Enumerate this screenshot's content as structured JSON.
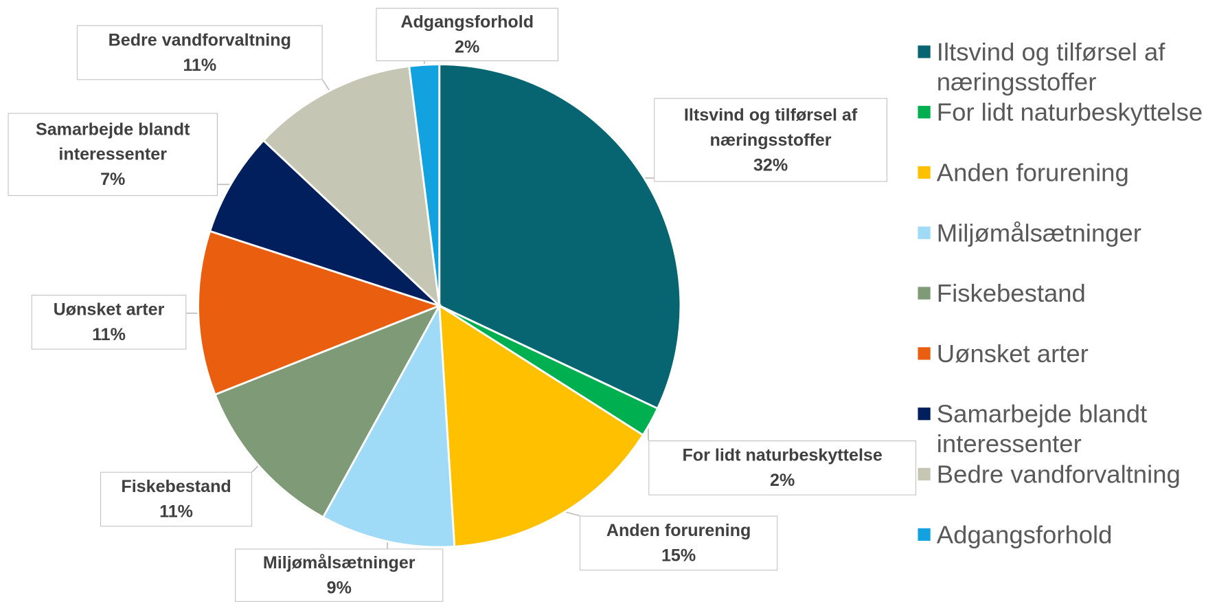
{
  "chart_data": {
    "type": "pie",
    "categories": [
      "Iltsvind og tilførsel af næringsstoffer",
      "For lidt naturbeskyttelse",
      "Anden forurening",
      "Miljømålsætninger",
      "Fiskebestand",
      "Uønsket arter",
      "Samarbejde blandt interessenter",
      "Bedre vandforvaltning",
      "Adgangsforhold"
    ],
    "values": [
      32,
      2,
      15,
      9,
      11,
      11,
      7,
      11,
      2
    ],
    "value_labels": [
      "32%",
      "2%",
      "15%",
      "9%",
      "11%",
      "11%",
      "7%",
      "11%",
      "2%"
    ],
    "colors": [
      "#066570",
      "#00b050",
      "#ffc000",
      "#9fdaf7",
      "#7f9a77",
      "#e95f0f",
      "#001f5c",
      "#c6c6b4",
      "#12a2e0"
    ],
    "legend": "right"
  }
}
